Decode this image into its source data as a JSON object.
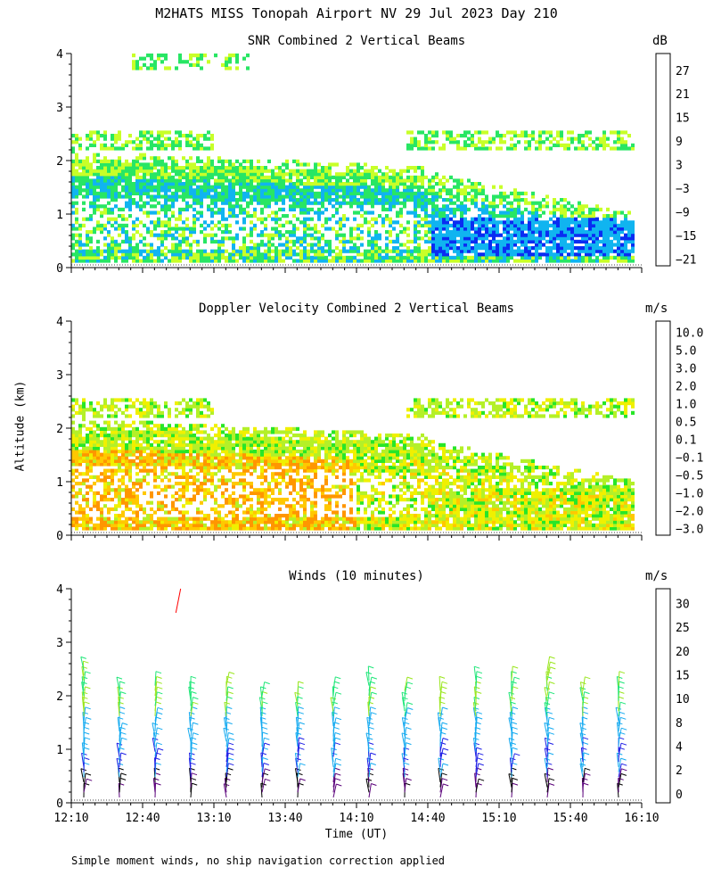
{
  "title": "M2HATS MISS Tonopah Airport NV  29 Jul 2023 Day 210",
  "y_axis_label": "Altitude (km)",
  "x_axis_label": "Time (UT)",
  "footnote": "Simple moment winds, no ship navigation correction applied",
  "chart_data": [
    {
      "type": "heatmap",
      "title": "SNR Combined 2 Vertical Beams",
      "ylabel": "Altitude (km)",
      "ylim": [
        0,
        4
      ],
      "yticks": [
        "0",
        "1",
        "2",
        "3",
        "4"
      ],
      "colorbar_unit": "dB",
      "colorbar_labels": [
        "27",
        "21",
        "15",
        "9",
        "3",
        "−3",
        "−9",
        "−15",
        "−21"
      ],
      "colorbar_colors": [
        "#ffc400",
        "#ff8c00",
        "#ff1a00",
        "#3b003b",
        "#5b0096",
        "#0a2df2",
        "#10b4f0",
        "#28e664",
        "#c8ff28"
      ],
      "layers": [
        {
          "name": "boundary layer",
          "bottom_km": 0.1,
          "top_start_km": 2.0,
          "top_end_km": 0.8
        },
        {
          "name": "elevated layer",
          "alt_km": 2.3,
          "from_time": "14:20",
          "to_time": "16:00"
        }
      ]
    },
    {
      "type": "heatmap",
      "title": "Doppler Velocity Combined 2 Vertical Beams",
      "ylabel": "Altitude (km)",
      "ylim": [
        0,
        4
      ],
      "yticks": [
        "0",
        "1",
        "2",
        "3",
        "4"
      ],
      "colorbar_unit": "m/s",
      "colorbar_labels": [
        "10.0",
        "5.0",
        "3.0",
        "2.0",
        "1.0",
        "0.5",
        "0.1",
        "−0.1",
        "−0.5",
        "−1.0",
        "−2.0",
        "−3.0"
      ],
      "colorbar_colors": [
        "#2d0a3c",
        "#50008c",
        "#3010dc",
        "#1458f0",
        "#14b4f0",
        "#28e628",
        "#b4f028",
        "#f0f000",
        "#ffc800",
        "#ff9600",
        "#ff5a00",
        "#ff1414"
      ]
    },
    {
      "type": "wind_barbs",
      "title": "Winds (10 minutes)",
      "ylabel": "Altitude (km)",
      "ylim": [
        0,
        4
      ],
      "yticks": [
        "0",
        "1",
        "2",
        "3",
        "4"
      ],
      "x_ticks": [
        "12:10",
        "12:40",
        "13:10",
        "13:40",
        "14:10",
        "14:40",
        "15:10",
        "15:40",
        "16:10"
      ],
      "colorbar_unit": "m/s",
      "colorbar_labels": [
        "30",
        "25",
        "20",
        "15",
        "10",
        "8",
        "4",
        "2",
        "0"
      ],
      "colorbar_colors": [
        "#ff0000",
        "#ff6a00",
        "#ffb400",
        "#9ae61e",
        "#1ee678",
        "#14aaf0",
        "#1e1ee6",
        "#5a007a",
        "#000000"
      ],
      "profile_times": [
        "12:10",
        "12:25",
        "12:40",
        "12:55",
        "13:10",
        "13:25",
        "13:40",
        "13:55",
        "14:10",
        "14:25",
        "14:40",
        "14:55",
        "15:10",
        "15:25",
        "15:40",
        "15:55"
      ]
    }
  ]
}
